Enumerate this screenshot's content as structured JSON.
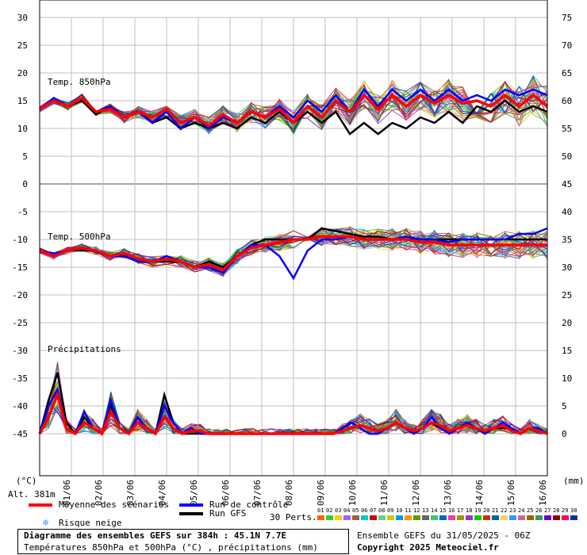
{
  "chart_data": {
    "type": "line",
    "title": "Diagramme des ensembles GEFS sur 384h : 45.1N 7.7E",
    "subtitle": "Températures 850hPa et 500hPa (°C) , précipitations (mm)",
    "x_labels": [
      "01/06",
      "02/06",
      "03/06",
      "04/06",
      "05/06",
      "06/06",
      "07/06",
      "08/06",
      "09/06",
      "10/06",
      "11/06",
      "12/06",
      "13/06",
      "14/06",
      "15/06",
      "16/06"
    ],
    "left_axis_ticks": [
      "30",
      "25",
      "20",
      "15",
      "10",
      "5",
      "0",
      "-5",
      "-10",
      "-15",
      "-20",
      "-25",
      "-30",
      "-35",
      "-40",
      "-45"
    ],
    "right_axis_ticks": [
      "75",
      "70",
      "65",
      "60",
      "55",
      "50",
      "45",
      "40",
      "35",
      "30",
      "25",
      "20",
      "15",
      "10",
      "5",
      "0"
    ],
    "left_unit": "(°C)",
    "right_unit": "(mm)",
    "altitude": "Alt. 381m",
    "panels": [
      {
        "label": "Temp. 850hPa",
        "ylim": [
          0,
          30
        ]
      },
      {
        "label": "Temp. 500hPa",
        "ylim": [
          -45,
          -5
        ]
      },
      {
        "label": "Précipitations",
        "ylim": [
          0,
          15
        ]
      }
    ],
    "series": [
      {
        "name": "Moyenne des scénarios",
        "t850": [
          13.5,
          15,
          14,
          15.5,
          13,
          13.5,
          12,
          13,
          12,
          13.5,
          11,
          12,
          10.5,
          12.5,
          11,
          13,
          12,
          13.5,
          11,
          14,
          12,
          15,
          13,
          16,
          13.5,
          16,
          14,
          16,
          14.5,
          16,
          14.5,
          15,
          14,
          16,
          14,
          16,
          14
        ],
        "t500": [
          -12,
          -13,
          -12,
          -11.5,
          -12,
          -13,
          -12.5,
          -13.5,
          -14,
          -13.5,
          -14,
          -15,
          -14.5,
          -15.5,
          -13,
          -11.5,
          -11,
          -10.5,
          -10,
          -10,
          -9.5,
          -9.5,
          -9.5,
          -10,
          -10,
          -10,
          -10,
          -10.5,
          -10.5,
          -11,
          -11,
          -11,
          -11,
          -11,
          -11,
          -11,
          -11
        ],
        "precip": [
          0,
          3,
          7,
          1,
          0,
          2,
          1,
          0,
          4,
          1,
          0,
          2,
          1,
          0,
          3,
          1,
          0,
          0.5,
          0.5,
          0,
          0,
          0,
          0,
          0,
          0,
          0,
          0,
          0,
          0,
          0,
          0,
          0,
          0,
          0,
          0.5,
          1,
          1.5,
          1,
          0.5,
          1,
          2,
          1,
          0.5,
          1,
          2,
          1.5,
          0.5,
          1,
          1.5,
          1,
          0.5,
          1,
          1.5,
          0.5,
          0,
          1,
          0.5,
          0
        ]
      },
      {
        "name": "Run de contrôle",
        "t850": [
          13.5,
          15.5,
          14,
          15.5,
          13,
          14,
          12,
          13,
          11,
          13,
          10,
          12,
          10,
          12,
          11,
          13,
          12,
          14,
          12,
          15,
          13,
          16,
          13,
          17,
          14,
          17,
          15,
          17,
          15,
          17,
          15,
          16,
          15,
          17,
          16,
          17,
          16
        ],
        "t500": [
          -12,
          -12.5,
          -12,
          -11.5,
          -12,
          -13,
          -13,
          -14,
          -14,
          -13,
          -14,
          -15,
          -15,
          -16,
          -13,
          -11,
          -11,
          -13,
          -17,
          -12,
          -10,
          -10,
          -9.5,
          -10,
          -10,
          -10,
          -9.5,
          -10,
          -10,
          -10.5,
          -10,
          -10,
          -10,
          -10,
          -9,
          -9,
          -8
        ],
        "precip": [
          0,
          5,
          8,
          1,
          0,
          4,
          1,
          0,
          6,
          1,
          0,
          3,
          1,
          0,
          5,
          2,
          0,
          1,
          0,
          0,
          0,
          0,
          0,
          0,
          0,
          0,
          0,
          0,
          0,
          0,
          0,
          0,
          0,
          0,
          1,
          2,
          1,
          0,
          0,
          1,
          2,
          1,
          0,
          1,
          3,
          1,
          0,
          1,
          2,
          1,
          0,
          1,
          2,
          1,
          0,
          1,
          1,
          0
        ]
      },
      {
        "name": "Run GFS",
        "t850": [
          13.5,
          15,
          14,
          15,
          12.5,
          14,
          12,
          13,
          11,
          12,
          10,
          11,
          10,
          11,
          10,
          12,
          11,
          13,
          11,
          13,
          11,
          13,
          9,
          11,
          9,
          11,
          10,
          12,
          11,
          13,
          11,
          14,
          13,
          15,
          13,
          14,
          13
        ],
        "t500": [
          -12,
          -13,
          -12,
          -12,
          -12,
          -13,
          -13,
          -14,
          -14,
          -14,
          -14,
          -15,
          -14,
          -15,
          -13,
          -11,
          -10,
          -10,
          -10,
          -10,
          -8,
          -8.5,
          -9,
          -9.5,
          -9.5,
          -10,
          -10,
          -10,
          -10,
          -10,
          -10,
          -10,
          -10,
          -10,
          -10,
          -10,
          -10
        ],
        "precip": [
          0,
          6,
          11,
          2,
          0,
          3,
          1,
          0,
          5,
          1,
          0,
          3,
          1,
          0,
          7,
          2,
          0,
          0,
          0,
          0,
          0,
          0,
          0,
          0,
          0,
          0,
          0,
          0,
          0,
          0,
          0,
          0,
          0,
          0,
          1,
          2,
          1,
          0,
          0,
          1,
          2,
          1,
          0,
          1,
          2,
          1,
          0,
          1,
          2,
          1,
          0,
          1,
          1,
          1,
          0,
          1,
          1,
          0
        ]
      }
    ]
  },
  "legend": {
    "mean": "Moyenne des scénarios",
    "control": "Run de contrôle",
    "gfs": "Run GFS",
    "snow": "Risque neige",
    "perts": "30 Perts.",
    "pert_numbers": [
      "01",
      "02",
      "03",
      "04",
      "05",
      "06",
      "07",
      "08",
      "09",
      "10",
      "11",
      "12",
      "13",
      "14",
      "15",
      "16",
      "17",
      "18",
      "19",
      "20",
      "21",
      "22",
      "23",
      "24",
      "25",
      "26",
      "27",
      "28",
      "29",
      "30"
    ],
    "pert_colors": [
      "#ff6600",
      "#33cc33",
      "#ffcc00",
      "#9966ff",
      "#996633",
      "#00cccc",
      "#cc0000",
      "#66cc99",
      "#cccc00",
      "#0099ff",
      "#ff9900",
      "#669900",
      "#666666",
      "#33cc66",
      "#0066cc",
      "#ff3399",
      "#999900",
      "#9933cc",
      "#00cc00",
      "#cc3300",
      "#006699",
      "#ffcc66",
      "#3399ff",
      "#cc6699",
      "#996600",
      "#339966",
      "#6600cc",
      "#990000",
      "#ff0066",
      "#003399"
    ]
  },
  "colors": {
    "mean": "#ff0000",
    "control": "#0000ff",
    "gfs": "#000000",
    "grid": "#c0c0c0"
  },
  "footer": {
    "title": "Diagramme des ensembles GEFS sur 384h : 45.1N 7.7E",
    "subtitle": "Températures 850hPa et 500hPa (°C) , précipitations (mm)",
    "run": "Ensemble GEFS du 31/05/2025 - 06Z",
    "copyright": "Copyright 2025 Meteociel.fr"
  }
}
